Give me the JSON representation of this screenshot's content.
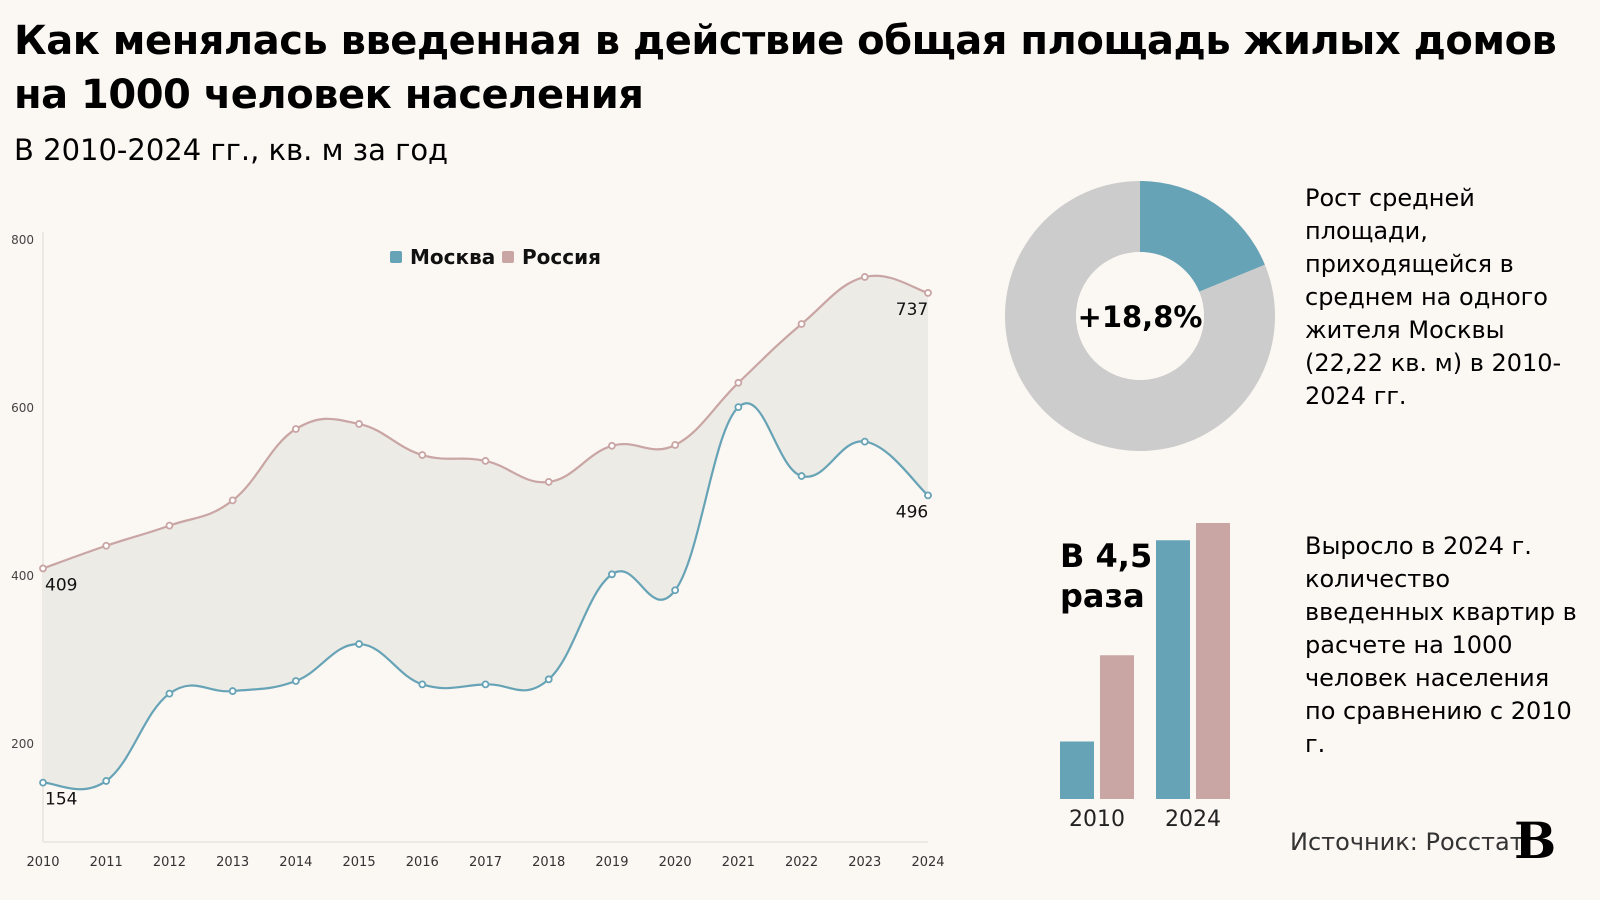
{
  "title": "Как менялась введенная в действие общая площадь жилых домов на 1000 человек населения",
  "subtitle": "В 2010-2024 гг., кв. м за год",
  "colors": {
    "moscow": "#67a3b6",
    "russia": "#c9a5a4",
    "band": "#ecebe6",
    "donut_rest": "#cccccc",
    "background": "#fbf7f3"
  },
  "chart_data": [
    {
      "type": "line",
      "x": [
        2010,
        2011,
        2012,
        2013,
        2014,
        2015,
        2016,
        2017,
        2018,
        2019,
        2020,
        2021,
        2022,
        2023,
        2024
      ],
      "x_tick_labels": [
        "2010",
        "2011",
        "2012",
        "2013",
        "2014",
        "2015",
        "2016",
        "2017",
        "2018",
        "2019",
        "2020",
        "2021",
        "2022",
        "2023",
        "2024"
      ],
      "y_ticks": [
        200,
        400,
        600,
        800
      ],
      "y_tick_labels": [
        "200",
        "400",
        "600",
        "800"
      ],
      "ylim": [
        100,
        800
      ],
      "legend_placement": "top-center",
      "grid": false,
      "series": [
        {
          "name": "Москва",
          "color": "#67a3b6",
          "values": [
            154,
            156,
            260,
            263,
            275,
            319,
            271,
            271,
            277,
            402,
            383,
            601,
            519,
            560,
            496
          ]
        },
        {
          "name": "Россия",
          "color": "#c9a5a4",
          "values": [
            409,
            436,
            460,
            490,
            575,
            581,
            544,
            537,
            512,
            555,
            556,
            630,
            700,
            756,
            737
          ]
        }
      ],
      "data_labels": [
        {
          "series": "Москва",
          "x": 2010,
          "text": "154"
        },
        {
          "series": "Москва",
          "x": 2024,
          "text": "496"
        },
        {
          "series": "Россия",
          "x": 2010,
          "text": "409"
        },
        {
          "series": "Россия",
          "x": 2024,
          "text": "737"
        }
      ],
      "area_between_series": true
    },
    {
      "type": "pie",
      "donut": true,
      "values": [
        18.8,
        81.2
      ],
      "colors": [
        "#67a3b6",
        "#cccccc"
      ],
      "center_label": "+18,8%"
    },
    {
      "type": "bar",
      "categories": [
        "2010",
        "2024"
      ],
      "series": [
        {
          "color": "#67a3b6",
          "values": [
            1,
            4.5
          ]
        },
        {
          "color": "#c9a5a4",
          "values": [
            2.5,
            4.8
          ]
        }
      ],
      "annotation": "В 4,5 раза"
    }
  ],
  "notes": {
    "donut_text": "Рост средней площади, приходящейся в среднем на одного жителя Москвы (22,22 кв. м) в 2010-2024 гг.",
    "bar_annotation_line1": "В 4,5",
    "bar_annotation_line2": "раза",
    "bar_text": "Выросло в 2024 г. количество введенных квартир в расчете на 1000 человек населения по сравнению с 2010 г."
  },
  "source": "Источник: Росстат",
  "logo": "В"
}
